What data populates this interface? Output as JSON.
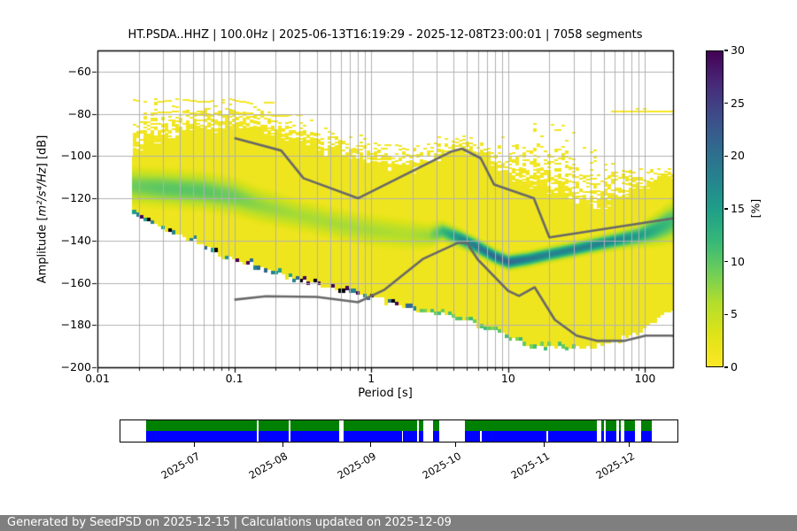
{
  "plot": {
    "title": "HT.PSDA..HHZ | 100.0Hz | 2025-06-13T16:19:29 - 2025-12-08T23:00:01 | 7058 segments",
    "x_axis": {
      "label": "Period [s]",
      "scale": "log",
      "min": 0.01,
      "max": 160,
      "ticks": [
        {
          "v": 0.01,
          "label": "0.01"
        },
        {
          "v": 0.1,
          "label": "0.1"
        },
        {
          "v": 1,
          "label": "1"
        },
        {
          "v": 10,
          "label": "10"
        },
        {
          "v": 100,
          "label": "100"
        }
      ]
    },
    "y_axis": {
      "label_prefix": "Amplitude [",
      "label_math": "m²/s⁴/Hz",
      "label_suffix": "] [dB]",
      "min": -200,
      "max": -50,
      "ticks": [
        {
          "v": -60,
          "label": "−60"
        },
        {
          "v": -80,
          "label": "−80"
        },
        {
          "v": -100,
          "label": "−100"
        },
        {
          "v": -120,
          "label": "−120"
        },
        {
          "v": -140,
          "label": "−140"
        },
        {
          "v": -160,
          "label": "−160"
        },
        {
          "v": -180,
          "label": "−180"
        },
        {
          "v": -200,
          "label": "−200"
        }
      ]
    },
    "colorbar": {
      "label": "[%]",
      "min": 0,
      "max": 30,
      "ticks": [
        {
          "v": 0,
          "label": "0"
        },
        {
          "v": 5,
          "label": "5"
        },
        {
          "v": 10,
          "label": "10"
        },
        {
          "v": 15,
          "label": "15"
        },
        {
          "v": 20,
          "label": "20"
        },
        {
          "v": 25,
          "label": "25"
        },
        {
          "v": 30,
          "label": "30"
        }
      ],
      "colormap": "viridis_r",
      "viridis_rgb": [
        [
          68,
          1,
          84
        ],
        [
          72,
          40,
          120
        ],
        [
          62,
          74,
          137
        ],
        [
          49,
          104,
          142
        ],
        [
          38,
          130,
          142
        ],
        [
          31,
          158,
          137
        ],
        [
          53,
          183,
          121
        ],
        [
          109,
          205,
          89
        ],
        [
          180,
          222,
          44
        ],
        [
          223,
          227,
          24
        ],
        [
          253,
          231,
          37
        ]
      ]
    },
    "grid_color": "#b0b0b0",
    "frame_color": "#000000"
  },
  "chart_data": {
    "type": "heatmap",
    "description": "PPSD probability heatmap: probability [%] of PSD amplitude vs period, colormap viridis reversed (0%=yellow, 30%=dark purple), with Peterson NHNM/NLNM gray reference curves",
    "noise_models": {
      "color": "#686868",
      "nhnm": [
        [
          0.1,
          -91.5
        ],
        [
          0.22,
          -97.4
        ],
        [
          0.32,
          -110.5
        ],
        [
          0.8,
          -120.0
        ],
        [
          3.8,
          -98.0
        ],
        [
          4.6,
          -96.5
        ],
        [
          6.3,
          -101.0
        ],
        [
          7.9,
          -113.5
        ],
        [
          15.4,
          -120.0
        ],
        [
          20,
          -138.5
        ],
        [
          160,
          -129.5
        ]
      ],
      "nlnm": [
        [
          0.1,
          -168.0
        ],
        [
          0.17,
          -166.4
        ],
        [
          0.4,
          -166.7
        ],
        [
          0.8,
          -169.2
        ],
        [
          1.24,
          -163.4
        ],
        [
          2.4,
          -148.6
        ],
        [
          4.3,
          -141.1
        ],
        [
          5,
          -141.1
        ],
        [
          6,
          -149.0
        ],
        [
          10,
          -163.8
        ],
        [
          12,
          -166.2
        ],
        [
          15.6,
          -162.1
        ],
        [
          21.9,
          -177.5
        ],
        [
          31.6,
          -185.0
        ],
        [
          45,
          -187.5
        ],
        [
          70,
          -187.5
        ],
        [
          101,
          -185.0
        ],
        [
          154,
          -185.0
        ],
        [
          160,
          -185.1
        ]
      ]
    },
    "ppsd_summary": {
      "period_min_s": 0.0177,
      "period_max_s": 160,
      "envelope_bottom": [
        [
          0.0177,
          -127
        ],
        [
          0.02,
          -129
        ],
        [
          0.03,
          -134
        ],
        [
          0.05,
          -140
        ],
        [
          0.08,
          -147
        ],
        [
          0.15,
          -152.5
        ],
        [
          0.32,
          -159.5
        ],
        [
          0.74,
          -165
        ],
        [
          1.2,
          -168.5
        ],
        [
          2,
          -172
        ],
        [
          3,
          -174.5
        ],
        [
          5,
          -177.7
        ],
        [
          8,
          -183
        ],
        [
          12,
          -188
        ],
        [
          16,
          -190.5
        ],
        [
          30,
          -191
        ],
        [
          50,
          -189
        ],
        [
          70,
          -186.5
        ],
        [
          87,
          -184
        ],
        [
          120,
          -178
        ],
        [
          160,
          -173
        ]
      ],
      "envelope_top_solid": [
        [
          0.0177,
          -97
        ],
        [
          0.025,
          -92
        ],
        [
          0.04,
          -88
        ],
        [
          0.07,
          -86
        ],
        [
          0.12,
          -86.5
        ],
        [
          0.2,
          -89
        ],
        [
          0.35,
          -94
        ],
        [
          0.6,
          -99
        ],
        [
          1,
          -103
        ],
        [
          1.8,
          -106
        ],
        [
          2.6,
          -104
        ],
        [
          3.5,
          -99
        ],
        [
          5,
          -97
        ],
        [
          7,
          -102
        ],
        [
          9,
          -107
        ],
        [
          12,
          -112
        ],
        [
          18,
          -116
        ],
        [
          30,
          -120
        ],
        [
          45,
          -123
        ],
        [
          60,
          -122
        ],
        [
          80,
          -116
        ],
        [
          110,
          -112
        ],
        [
          160,
          -109
        ]
      ],
      "envelope_top_scatter": [
        [
          0.0177,
          -75
        ],
        [
          0.03,
          -72.5
        ],
        [
          0.06,
          -72
        ],
        [
          0.12,
          -73.5
        ],
        [
          0.25,
          -77
        ],
        [
          0.5,
          -83
        ],
        [
          1,
          -89
        ],
        [
          2,
          -93
        ],
        [
          3,
          -90
        ],
        [
          4.5,
          -87
        ],
        [
          6,
          -89
        ],
        [
          8,
          -93
        ],
        [
          11,
          -88
        ],
        [
          15,
          -83.5
        ],
        [
          22,
          -82.5
        ],
        [
          30,
          -85
        ],
        [
          40,
          -91
        ],
        [
          55,
          -98
        ],
        [
          80,
          -103
        ],
        [
          120,
          -105
        ],
        [
          160,
          -104
        ]
      ],
      "mode_curve_period_db_percent_sigma": [
        [
          0.0177,
          -114,
          9,
          5.5
        ],
        [
          0.03,
          -115,
          10,
          5.5
        ],
        [
          0.06,
          -116.5,
          10,
          5.5
        ],
        [
          0.1,
          -119,
          9,
          5.5
        ],
        [
          0.15,
          -123,
          7.5,
          5.5
        ],
        [
          0.3,
          -128,
          6.5,
          5
        ],
        [
          0.6,
          -132.5,
          6.5,
          5
        ],
        [
          1,
          -135,
          6.5,
          5
        ],
        [
          1.8,
          -137,
          6,
          5
        ],
        [
          2.6,
          -137.5,
          7,
          4
        ],
        [
          3.3,
          -135.5,
          12,
          3
        ],
        [
          4.5,
          -139,
          17,
          2.6
        ],
        [
          6,
          -143,
          19,
          2.4
        ],
        [
          8,
          -147.5,
          21,
          2.2
        ],
        [
          10,
          -150,
          21,
          2.2
        ],
        [
          14,
          -148.5,
          19,
          2.2
        ],
        [
          20,
          -146.3,
          18,
          2.2
        ],
        [
          30,
          -144,
          18,
          2.2
        ],
        [
          45,
          -141.5,
          18,
          2.3
        ],
        [
          64,
          -139.5,
          17,
          2.5
        ],
        [
          90,
          -137.5,
          15,
          3
        ],
        [
          120,
          -134.5,
          13,
          4.5
        ],
        [
          160,
          -130.5,
          11,
          6
        ]
      ],
      "features": {
        "top_arcs": [
          [
            [
              0.018,
              -73.5
            ],
            [
              0.025,
              -75
            ],
            [
              0.04,
              -73
            ],
            [
              0.06,
              -74.5
            ],
            [
              0.09,
              -73
            ],
            [
              0.13,
              -75
            ],
            [
              0.2,
              -74.5
            ]
          ],
          [
            [
              0.02,
              -80
            ],
            [
              0.04,
              -79
            ],
            [
              0.07,
              -81
            ],
            [
              0.12,
              -79.5
            ],
            [
              0.2,
              -81
            ],
            [
              0.32,
              -80.5
            ]
          ]
        ],
        "hline_right": {
          "db": -79,
          "p_from": 55,
          "p_to": 160
        },
        "hline_step": {
          "db": -77.5,
          "p_from": 85,
          "p_to": 105
        }
      }
    },
    "timeline": {
      "start": "2025-06-13",
      "end": "2025-12-08",
      "total_days": 178.3,
      "axis_pad_days": 8.9,
      "month_ticks": [
        {
          "label": "2025-07",
          "day": 17.32
        },
        {
          "label": "2025-08",
          "day": 48.32
        },
        {
          "label": "2025-09",
          "day": 79.32
        },
        {
          "label": "2025-10",
          "day": 109.32
        },
        {
          "label": "2025-11",
          "day": 140.32
        },
        {
          "label": "2025-12",
          "day": 170.32
        }
      ],
      "segments_days": [
        [
          0,
          39.0
        ],
        [
          39.6,
          50.3
        ],
        [
          51.0,
          68.0
        ],
        [
          69.8,
          95.5
        ],
        [
          96.3,
          97.6
        ],
        [
          101.3,
          103.2
        ],
        [
          112.3,
          158.7
        ],
        [
          160.3,
          161.2
        ],
        [
          161.8,
          165.6
        ],
        [
          166.5,
          167.4
        ],
        [
          168.4,
          172.1
        ],
        [
          174.5,
          178.3
        ]
      ],
      "blue_only_gap_days": [
        90.4,
        117.9,
        141.3
      ],
      "blue_only_gap_width_days": 0.5,
      "row_colors": {
        "top": "#008000",
        "bottom": "#0000ff"
      }
    }
  },
  "footer": {
    "text": "Generated by SeedPSD on 2025-12-15 | Calculations updated on 2025-12-09",
    "bg": "#7f7f7f",
    "color": "#ffffff"
  }
}
